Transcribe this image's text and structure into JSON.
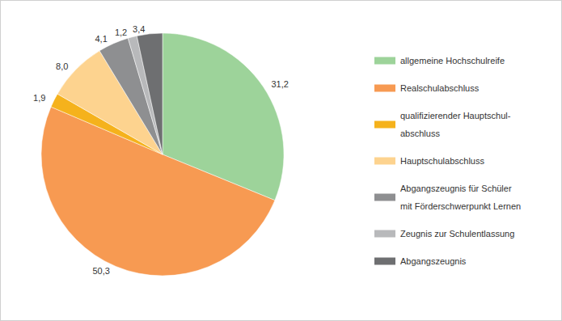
{
  "chart_data": {
    "type": "pie",
    "categories": [
      "allgemeine Hochschulreife",
      "Realschulabschluss",
      "qualifizierender Hauptschul-\nabschluss",
      "Hauptschulabschluss",
      "Abgangszeugnis für Schüler\nmit Förderschwerpunkt Lernen",
      "Zeugnis zur Schulentlassung",
      "Abgangszeugnis"
    ],
    "values": [
      31.2,
      50.3,
      1.9,
      8.0,
      4.1,
      1.2,
      3.4
    ],
    "value_labels": [
      "31,2",
      "50,3",
      "1,9",
      "8,0",
      "4,1",
      "1,2",
      "3,4"
    ],
    "colors": [
      "#9dd39a",
      "#f79a52",
      "#f5b21c",
      "#fdd38f",
      "#8e8f91",
      "#b8b9bb",
      "#6e6f71"
    ],
    "legend": "right",
    "data_labels": true
  }
}
